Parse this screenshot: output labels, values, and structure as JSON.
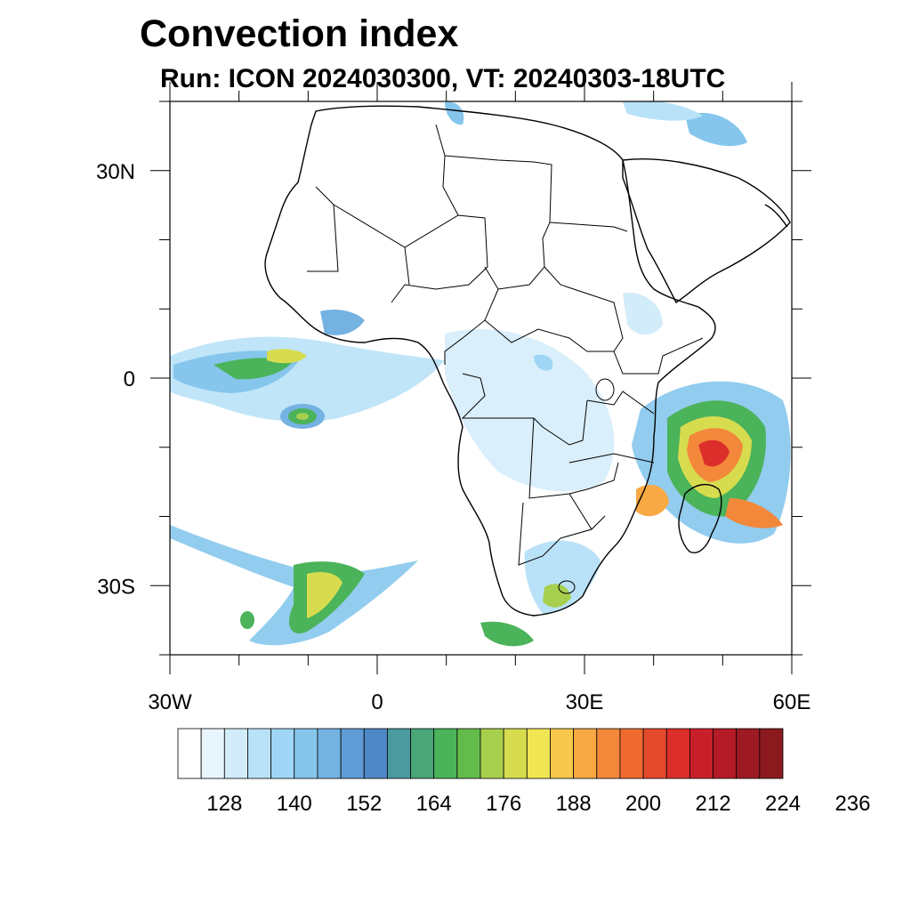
{
  "title": "Convection index",
  "subtitle": "Run: ICON 2024030300,  VT: 20240303-18UTC",
  "map": {
    "lon_range": [
      -30,
      60
    ],
    "lat_range": [
      -40,
      40
    ],
    "x_ticks": [
      {
        "value": -30,
        "label": "30W"
      },
      {
        "value": 0,
        "label": "0"
      },
      {
        "value": 30,
        "label": "30E"
      },
      {
        "value": 60,
        "label": "60E"
      }
    ],
    "y_ticks": [
      {
        "value": 30,
        "label": "30N"
      },
      {
        "value": 0,
        "label": "0"
      },
      {
        "value": -30,
        "label": "30S"
      }
    ]
  },
  "colorbar": {
    "colors": [
      "#ffffff",
      "#e8f5fd",
      "#d2ecfa",
      "#b9e2f8",
      "#9fd6f5",
      "#86c6ec",
      "#74b2e2",
      "#5f9bd4",
      "#4f88c6",
      "#4a9a9f",
      "#4aa577",
      "#4bb35a",
      "#63bb4c",
      "#a7cf4e",
      "#d7dc4f",
      "#f2e553",
      "#f8c84d",
      "#f8a943",
      "#f3883b",
      "#ee6a31",
      "#e5492b",
      "#dc2e2b",
      "#c8202a",
      "#b41b27",
      "#9d1a22",
      "#8a1a1e"
    ],
    "labels": [
      "128",
      "140",
      "152",
      "164",
      "176",
      "188",
      "200",
      "212",
      "224",
      "236"
    ]
  }
}
